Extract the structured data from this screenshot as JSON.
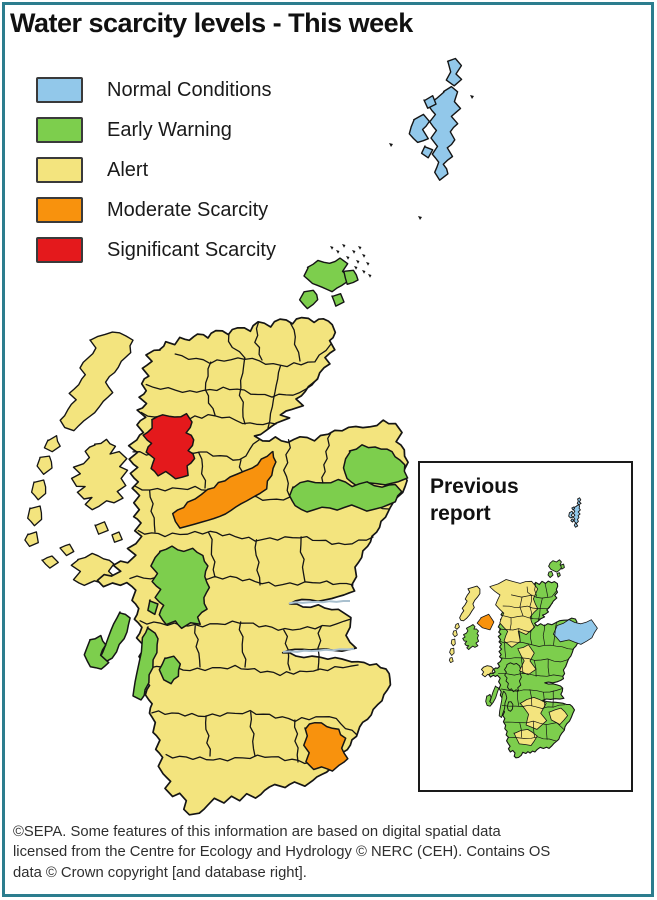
{
  "title": "Water scarcity levels - This week",
  "legend": {
    "items": [
      {
        "label": "Normal Conditions",
        "status": "normal",
        "color": "#92C8EA"
      },
      {
        "label": "Early Warning",
        "status": "early_warning",
        "color": "#7DCE4D"
      },
      {
        "label": "Alert",
        "status": "alert",
        "color": "#F3E47E"
      },
      {
        "label": "Moderate Scarcity",
        "status": "moderate",
        "color": "#F8920D"
      },
      {
        "label": "Significant Scarcity",
        "status": "significant",
        "color": "#E4191C"
      }
    ]
  },
  "inset": {
    "title_line1": "Previous",
    "title_line2": "report"
  },
  "map": {
    "this_week": {
      "default_status": "alert",
      "regions": [
        {
          "area": "Shetland islands",
          "status": "normal"
        },
        {
          "area": "Orkney islands",
          "status": "early_warning"
        },
        {
          "area": "north-east coastal catchments",
          "status": "early_warning"
        },
        {
          "area": "north-west highlands catchment",
          "status": "significant"
        },
        {
          "area": "great-glen diagonal catchment",
          "status": "moderate"
        },
        {
          "area": "argyll peninsulas and islands",
          "status": "early_warning"
        },
        {
          "area": "south-east borders catchment",
          "status": "moderate"
        },
        {
          "area": "all other catchments",
          "status": "alert"
        }
      ]
    },
    "previous_report": {
      "default_status": "early_warning",
      "regions": [
        {
          "area": "Shetland islands",
          "status": "normal"
        },
        {
          "area": "north-east coastal catchment",
          "status": "normal"
        },
        {
          "area": "northern and western catchments",
          "status": "alert"
        },
        {
          "area": "north-west coastal spot",
          "status": "moderate"
        },
        {
          "area": "southern scattered catchments",
          "status": "alert"
        }
      ]
    }
  },
  "footer": {
    "lines": [
      "©SEPA. Some features of this information are based on digital spatial data",
      "licensed from the Centre for Ecology and Hydrology © NERC (CEH). Contains OS",
      "data © Crown copyright [and database right]."
    ]
  },
  "colors": {
    "frame": "#2C7D8E",
    "outline": "#151515",
    "background": "#ffffff",
    "title_text": "#111111",
    "footer_text": "#2e2e2e"
  }
}
